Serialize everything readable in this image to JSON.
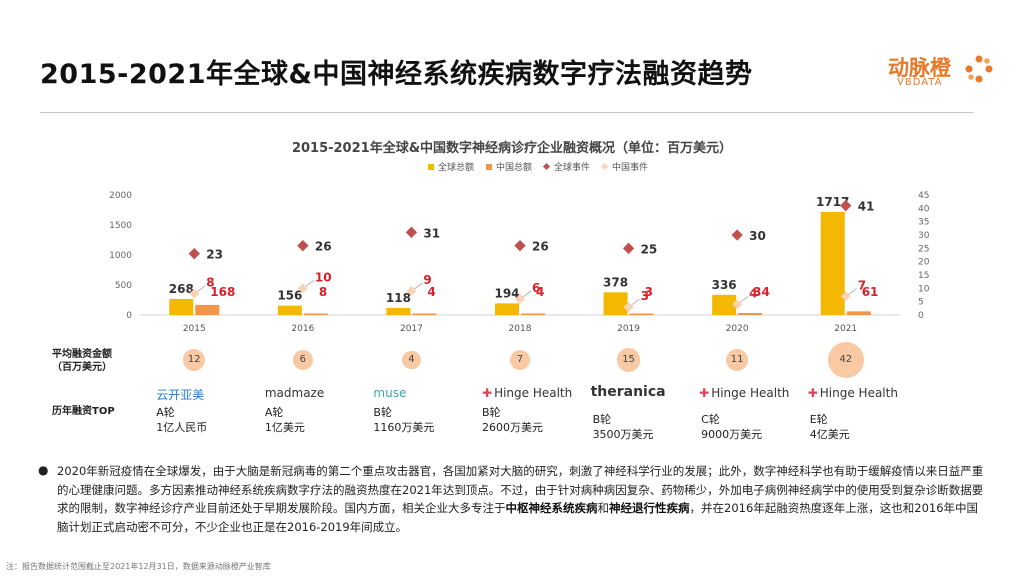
{
  "header": {
    "title": "2015-2021年全球&中国神经系统疾病数字疗法融资趋势",
    "logo_cn": "动脉橙",
    "logo_en": "VBDATA"
  },
  "chart_data": {
    "type": "bar",
    "title": "2015-2021年全球&中国数字神经病诊疗企业融资概况（单位：百万美元）",
    "categories": [
      "2015",
      "2016",
      "2017",
      "2018",
      "2019",
      "2020",
      "2021"
    ],
    "series": [
      {
        "name": "全球总额",
        "kind": "bar",
        "axis": "left",
        "color": "#f5b800",
        "values": [
          268,
          156,
          118,
          194,
          378,
          336,
          1717
        ]
      },
      {
        "name": "中国总额",
        "kind": "bar",
        "axis": "left",
        "color": "#f0954a",
        "values": [
          168,
          8,
          4,
          4,
          3,
          34,
          61
        ]
      },
      {
        "name": "全球事件",
        "kind": "scatter",
        "axis": "right",
        "color": "#c0504d",
        "values": [
          23,
          26,
          31,
          26,
          25,
          30,
          41
        ]
      },
      {
        "name": "中国事件",
        "kind": "scatter",
        "axis": "right",
        "color": "#f9d3b3",
        "values": [
          8,
          10,
          9,
          6,
          3,
          4,
          7
        ]
      }
    ],
    "left_axis": {
      "ylim": [
        0,
        2000
      ],
      "ticks": [
        "0",
        "500",
        "1000",
        "1500",
        "2000"
      ]
    },
    "right_axis": {
      "ylim": [
        0,
        45
      ],
      "ticks": [
        "0",
        "5",
        "10",
        "15",
        "20",
        "25",
        "30",
        "35",
        "40",
        "45"
      ]
    }
  },
  "avg_row": {
    "label_line1": "平均融资金额",
    "label_line2": "（百万美元）",
    "values": [
      "12",
      "6",
      "4",
      "7",
      "15",
      "11",
      "42"
    ]
  },
  "top_row": {
    "label": "历年融资TOP",
    "companies": [
      "云开亚美",
      "madmaze",
      "muse",
      "Hinge Health",
      "theranica",
      "Hinge Health",
      "Hinge Health"
    ],
    "rounds": [
      "A轮",
      "A轮",
      "B轮",
      "B轮",
      "B轮",
      "C轮",
      "E轮"
    ],
    "amounts": [
      "1亿人民币",
      "1亿美元",
      "1160万美元",
      "2600万美元",
      "3500万美元",
      "9000万美元",
      "4亿美元"
    ]
  },
  "body": {
    "para_1": "2020年新冠疫情在全球爆发，由于大脑是新冠病毒的第二个重点攻击器官，各国加紧对大脑的研究，刺激了神经科学行业的发展；此外，数字神经科学也有助于缓解疫情以来日益严重的心理健康问题。多方因素推动神经系统疾病数字疗法的融资热度在2021年达到顶点。不过，由于针对病种病因复杂、药物稀少，外加电子病例神经病学中的使用受到复杂诊断数据要求的限制，数字神经诊疗产业目前还处于早期发展阶段。国内方面，相关企业大多专注于",
    "highlight_1": "中枢神经系统疾病",
    "connector": "和",
    "highlight_2": "神经退行性疾病",
    "para_2": "，并在2016年起融资热度逐年上涨，这也和2016年中国脑计划正式启动密不可分，不少企业也正是在2016-2019年间成立。"
  },
  "footnote": "注：报告数据统计范围截止至2021年12月31日，数据来源动脉橙产业智库"
}
